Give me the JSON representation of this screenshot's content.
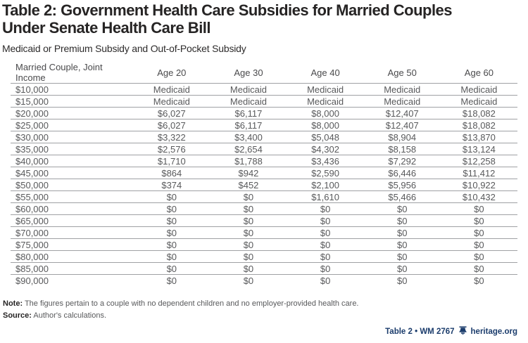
{
  "title_line1": "Table 2: Government Health Care Subsidies for Married Couples",
  "title_line2": "Under Senate Health Care Bill",
  "subtitle": "Medicaid or Premium Subsidy and Out-of-Pocket Subsidy",
  "table": {
    "columns": [
      "Married Couple, Joint Income",
      "Age 20",
      "Age 30",
      "Age 40",
      "Age 50",
      "Age 60"
    ],
    "rows": [
      [
        "$10,000",
        "Medicaid",
        "Medicaid",
        "Medicaid",
        "Medicaid",
        "Medicaid"
      ],
      [
        "$15,000",
        "Medicaid",
        "Medicaid",
        "Medicaid",
        "Medicaid",
        "Medicaid"
      ],
      [
        "$20,000",
        "$6,027",
        "$6,117",
        "$8,000",
        "$12,407",
        "$18,082"
      ],
      [
        "$25,000",
        "$6,027",
        "$6,117",
        "$8,000",
        "$12,407",
        "$18,082"
      ],
      [
        "$30,000",
        "$3,322",
        "$3,400",
        "$5,048",
        "$8,904",
        "$13,870"
      ],
      [
        "$35,000",
        "$2,576",
        "$2,654",
        "$4,302",
        "$8,158",
        "$13,124"
      ],
      [
        "$40,000",
        "$1,710",
        "$1,788",
        "$3,436",
        "$7,292",
        "$12,258"
      ],
      [
        "$45,000",
        "$864",
        "$942",
        "$2,590",
        "$6,446",
        "$11,412"
      ],
      [
        "$50,000",
        "$374",
        "$452",
        "$2,100",
        "$5,956",
        "$10,922"
      ],
      [
        "$55,000",
        "$0",
        "$0",
        "$1,610",
        "$5,466",
        "$10,432"
      ],
      [
        "$60,000",
        "$0",
        "$0",
        "$0",
        "$0",
        "$0"
      ],
      [
        "$65,000",
        "$0",
        "$0",
        "$0",
        "$0",
        "$0"
      ],
      [
        "$70,000",
        "$0",
        "$0",
        "$0",
        "$0",
        "$0"
      ],
      [
        "$75,000",
        "$0",
        "$0",
        "$0",
        "$0",
        "$0"
      ],
      [
        "$80,000",
        "$0",
        "$0",
        "$0",
        "$0",
        "$0"
      ],
      [
        "$85,000",
        "$0",
        "$0",
        "$0",
        "$0",
        "$0"
      ],
      [
        "$90,000",
        "$0",
        "$0",
        "$0",
        "$0",
        "$0"
      ]
    ]
  },
  "notes": {
    "note_label": "Note:",
    "note_text": " The figures pertain to a couple with no dependent children and no employer-provided health care.",
    "source_label": "Source:",
    "source_text": " Author's calculations."
  },
  "footer": {
    "credit": "Table 2 • WM 2767",
    "site": "heritage.org",
    "accent_color": "#1b3c6c",
    "icon": "liberty-bell-icon"
  },
  "colors": {
    "title_text": "#262424",
    "body_text": "#58595b",
    "rule_line": "#9fa1a4",
    "accent_navy": "#1b3c6c"
  }
}
